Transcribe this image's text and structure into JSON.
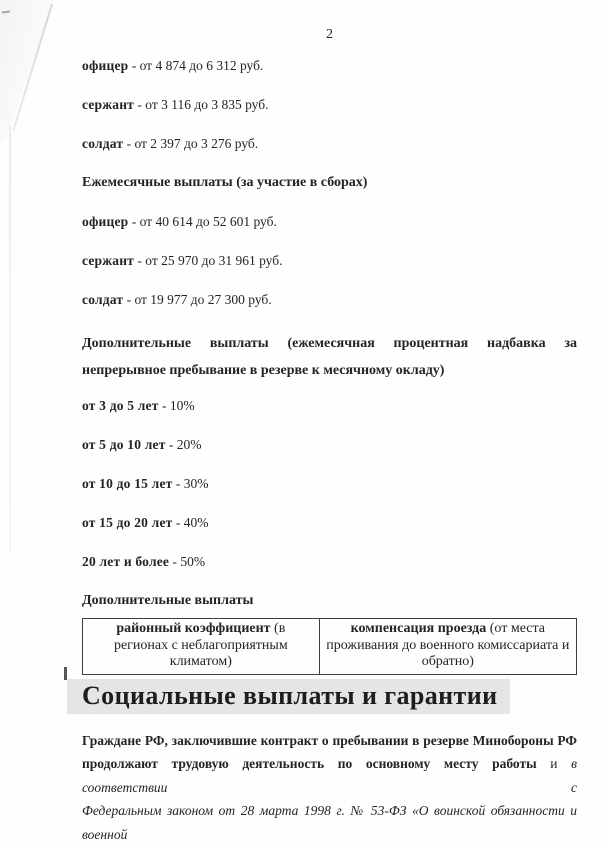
{
  "page_number": "2",
  "rates_daily": [
    {
      "label": "офицер",
      "value": " - от 4 874 до 6 312 руб."
    },
    {
      "label": "сержант",
      "value": " - от 3 116 до 3 835 руб."
    },
    {
      "label": "солдат",
      "value": " - от 2 397 до 3 276 руб."
    }
  ],
  "monthly_heading": "Ежемесячные выплаты (за участие в сборах)",
  "rates_monthly": [
    {
      "label": "офицер",
      "value": " - от 40 614 до 52 601 руб."
    },
    {
      "label": "сержант",
      "value": " - от 25 970 до 31 961 руб."
    },
    {
      "label": "солдат",
      "value": " - от 19 977 до 27 300 руб."
    }
  ],
  "bonus_heading": "Дополнительные выплаты (ежемесячная процентная надбавка за непрерывное пребывание в резерве к месячному окладу)",
  "tenure_rates": [
    {
      "label": "от 3 до 5 лет",
      "value": " - 10%"
    },
    {
      "label": "от 5 до 10 лет",
      "value": " - 20%"
    },
    {
      "label": "от 10 до 15 лет",
      "value": " - 30%"
    },
    {
      "label": "от 15 до 20 лет",
      "value": " - 40%"
    },
    {
      "label": "20 лет и более",
      "value": " - 50%"
    }
  ],
  "additional_heading": "Дополнительные выплаты",
  "benefits_table": {
    "cells": [
      {
        "bold": "районный коэффициент",
        "rest": " (в регионах с неблагоприятным климатом)"
      },
      {
        "bold": "компенсация проезда",
        "rest": " (от места проживания до военного комиссариата и обратно)"
      }
    ]
  },
  "social_heading": "Социальные выплаты и гарантии",
  "paragraph_lines": [
    {
      "bold": "Граждане РФ, заключившие контракт о пребывании в резерве Минобороны РФ",
      "regular": "",
      "italic": ""
    },
    {
      "bold": "продолжают трудовую деятельность по основному месту работы",
      "regular": " и ",
      "italic": "в соответствии с"
    },
    {
      "bold": "",
      "regular": "",
      "italic": "Федеральным законом от 28 марта 1998 г. № 53-ФЗ «О воинской обязанности и военной"
    }
  ],
  "colors": {
    "highlight": "#e5e5e5",
    "ink": "#242424",
    "border": "#3e3e3e"
  }
}
